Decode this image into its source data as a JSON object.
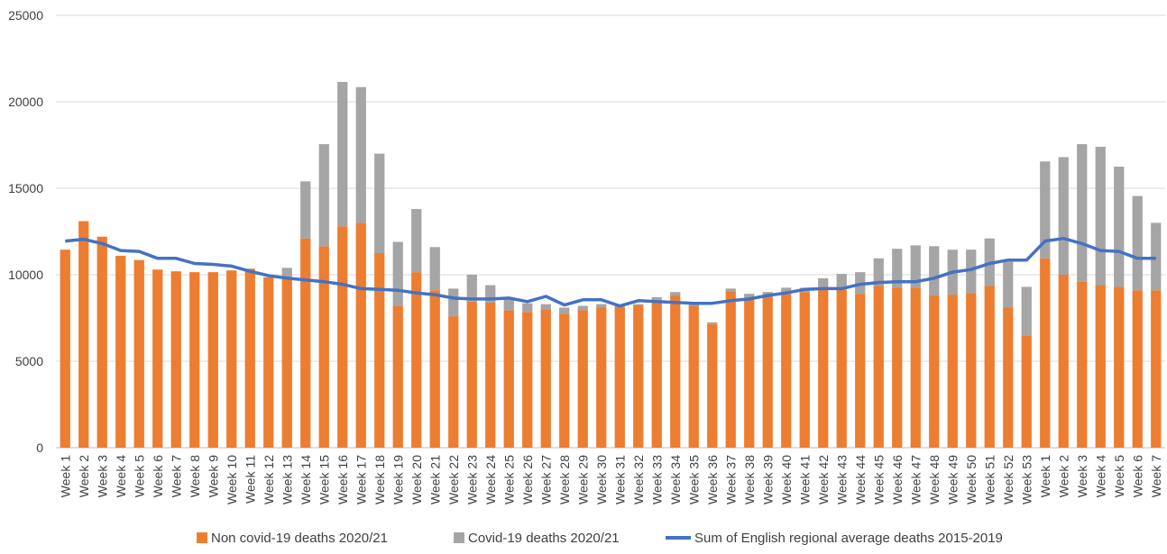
{
  "chart_data": {
    "type": "bar",
    "stacked": true,
    "title": "",
    "xlabel": "",
    "ylabel": "",
    "ylim": [
      0,
      25000
    ],
    "yticks": [
      0,
      5000,
      10000,
      15000,
      20000,
      25000
    ],
    "grid": true,
    "legend_position": "bottom",
    "categories": [
      "Week 1",
      "Week 2",
      "Week 3",
      "Week 4",
      "Week 5",
      "Week 6",
      "Week 7",
      "Week 8",
      "Week 9",
      "Week 10",
      "Week 11",
      "Week 12",
      "Week 13",
      "Week 14",
      "Week 15",
      "Week 16",
      "Week 17",
      "Week 18",
      "Week 19",
      "Week 20",
      "Week 21",
      "Week 22",
      "Week 23",
      "Week 24",
      "Week 25",
      "Week 26",
      "Week 27",
      "Week 28",
      "Week 29",
      "Week 30",
      "Week 31",
      "Week 32",
      "Week 33",
      "Week 34",
      "Week 35",
      "Week 36",
      "Week 37",
      "Week 38",
      "Week 39",
      "Week 40",
      "Week 41",
      "Week 42",
      "Week 43",
      "Week 44",
      "Week 45",
      "Week 46",
      "Week 47",
      "Week 48",
      "Week 49",
      "Week 50",
      "Week 51",
      "Week 52",
      "Week 53",
      "Week 1",
      "Week 2",
      "Week 3",
      "Week 4",
      "Week 5",
      "Week 6",
      "Week 7"
    ],
    "series": [
      {
        "name": "Non covid-19 deaths 2020/21",
        "kind": "bar",
        "color": "#ED7D31",
        "values": [
          11450,
          13100,
          12200,
          11100,
          10850,
          10300,
          10200,
          10150,
          10150,
          10250,
          10350,
          9850,
          9750,
          12100,
          11650,
          12800,
          13000,
          11250,
          8200,
          10150,
          9100,
          7600,
          8450,
          8400,
          7950,
          7850,
          8000,
          7750,
          7950,
          8100,
          8150,
          8250,
          8550,
          8800,
          8200,
          7150,
          9050,
          8650,
          8750,
          8900,
          9000,
          9150,
          9150,
          8900,
          9350,
          9250,
          9250,
          8800,
          8850,
          8950,
          9350,
          8100,
          6500,
          10950,
          10000,
          9600,
          9400,
          9300,
          9100,
          9100
        ]
      },
      {
        "name": "Covid-19 deaths 2020/21",
        "kind": "bar",
        "color": "#A5A5A5",
        "values": [
          0,
          0,
          0,
          0,
          0,
          0,
          0,
          0,
          0,
          0,
          0,
          0,
          650,
          3300,
          5900,
          8350,
          7850,
          5750,
          3700,
          3650,
          2500,
          1600,
          1550,
          1000,
          650,
          500,
          300,
          350,
          250,
          200,
          100,
          50,
          150,
          200,
          100,
          100,
          150,
          250,
          250,
          350,
          250,
          650,
          900,
          1250,
          1600,
          2250,
          2450,
          2850,
          2600,
          2500,
          2750,
          2650,
          2800,
          5600,
          6800,
          7950,
          8000,
          6950,
          5450,
          3900
        ]
      },
      {
        "name": "Sum of English regional average deaths 2015-2019",
        "kind": "line",
        "color": "#4472C4",
        "values": [
          11950,
          12050,
          11800,
          11400,
          11350,
          10950,
          10950,
          10650,
          10600,
          10500,
          10200,
          9950,
          9800,
          9700,
          9600,
          9450,
          9200,
          9150,
          9100,
          8950,
          8850,
          8650,
          8600,
          8600,
          8650,
          8450,
          8750,
          8250,
          8550,
          8550,
          8200,
          8500,
          8450,
          8400,
          8350,
          8350,
          8500,
          8600,
          8800,
          8950,
          9150,
          9200,
          9200,
          9450,
          9550,
          9600,
          9600,
          9800,
          10150,
          10300,
          10650,
          10850,
          10850,
          11950,
          12100,
          11800,
          11400,
          11350,
          10950,
          10950
        ]
      }
    ]
  }
}
